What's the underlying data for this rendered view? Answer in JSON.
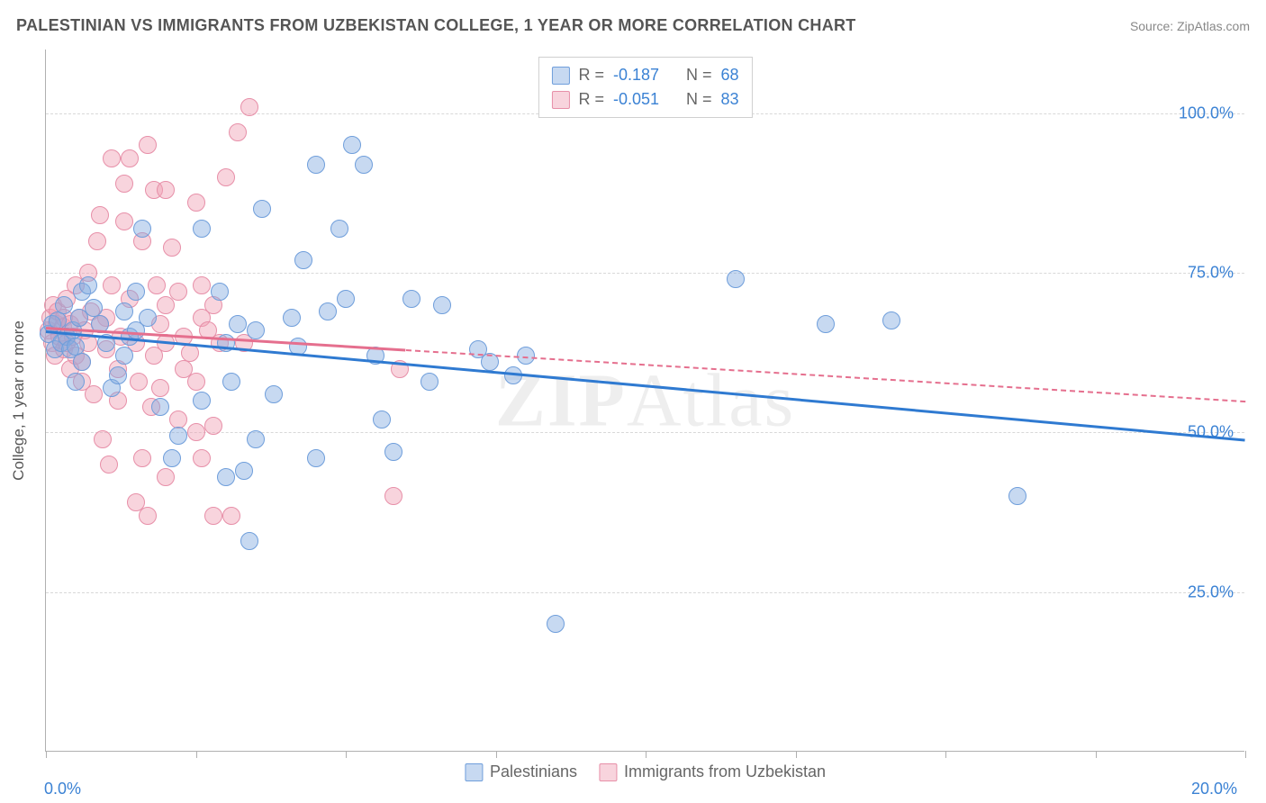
{
  "title": "PALESTINIAN VS IMMIGRANTS FROM UZBEKISTAN COLLEGE, 1 YEAR OR MORE CORRELATION CHART",
  "source": "Source: ZipAtlas.com",
  "watermark_prefix": "ZIP",
  "watermark_suffix": "Atlas",
  "chart": {
    "type": "scatter",
    "y_axis_title": "College, 1 year or more",
    "x_min_label": "0.0%",
    "x_max_label": "20.0%",
    "xlim": [
      0,
      20
    ],
    "ylim": [
      0,
      110
    ],
    "gridlines_y": [
      25,
      50,
      75,
      100
    ],
    "y_tick_labels": [
      "25.0%",
      "50.0%",
      "75.0%",
      "100.0%"
    ],
    "x_ticks": [
      0,
      2.5,
      5,
      7.5,
      10,
      12.5,
      15,
      17.5,
      20
    ],
    "background_color": "#ffffff",
    "grid_color": "#d8d8d8",
    "axis_color": "#b0b0b0",
    "label_color": "#3b82d4",
    "title_color": "#555555",
    "title_fontsize": 18,
    "tick_fontsize": 18,
    "marker_radius": 10,
    "series": [
      {
        "name": "Palestinians",
        "fill": "rgba(130,170,225,0.45)",
        "stroke": "#6f9edb",
        "trend_color": "#2f7ad1",
        "solid_end_x": 20,
        "trend": {
          "x1": 0,
          "y1": 66,
          "x2": 20,
          "y2": 49
        },
        "R": "-0.187",
        "N": "68",
        "points": [
          [
            0.05,
            65.5
          ],
          [
            0.1,
            67
          ],
          [
            0.15,
            63
          ],
          [
            0.2,
            67.5
          ],
          [
            0.25,
            64
          ],
          [
            0.3,
            70
          ],
          [
            0.35,
            65
          ],
          [
            0.4,
            63
          ],
          [
            0.45,
            66
          ],
          [
            0.5,
            63.5
          ],
          [
            0.55,
            68
          ],
          [
            0.5,
            58
          ],
          [
            0.6,
            61
          ],
          [
            0.6,
            72
          ],
          [
            0.7,
            73
          ],
          [
            0.8,
            69.5
          ],
          [
            0.9,
            67
          ],
          [
            1.0,
            64
          ],
          [
            1.1,
            57
          ],
          [
            1.2,
            59
          ],
          [
            1.3,
            62
          ],
          [
            1.4,
            65
          ],
          [
            1.5,
            66
          ],
          [
            1.3,
            69
          ],
          [
            1.5,
            72
          ],
          [
            1.7,
            68
          ],
          [
            1.6,
            82
          ],
          [
            1.9,
            54
          ],
          [
            2.1,
            46
          ],
          [
            2.2,
            49.5
          ],
          [
            2.6,
            55
          ],
          [
            2.6,
            82
          ],
          [
            2.9,
            72
          ],
          [
            3.0,
            64
          ],
          [
            3.1,
            58
          ],
          [
            3.3,
            44
          ],
          [
            3.4,
            33
          ],
          [
            3.0,
            43
          ],
          [
            3.2,
            67
          ],
          [
            3.6,
            85
          ],
          [
            3.5,
            49
          ],
          [
            3.5,
            66
          ],
          [
            3.8,
            56
          ],
          [
            4.1,
            68
          ],
          [
            4.2,
            63.5
          ],
          [
            4.3,
            77
          ],
          [
            4.5,
            46
          ],
          [
            4.7,
            69
          ],
          [
            4.9,
            82
          ],
          [
            5.1,
            95
          ],
          [
            5.3,
            92
          ],
          [
            5.0,
            71
          ],
          [
            5.5,
            62
          ],
          [
            5.6,
            52
          ],
          [
            5.8,
            47
          ],
          [
            4.5,
            92
          ],
          [
            6.1,
            71
          ],
          [
            6.4,
            58
          ],
          [
            6.6,
            70
          ],
          [
            7.2,
            63
          ],
          [
            7.4,
            61
          ],
          [
            7.8,
            59
          ],
          [
            8.0,
            62
          ],
          [
            8.5,
            20
          ],
          [
            11.5,
            74
          ],
          [
            13.0,
            67
          ],
          [
            14.1,
            67.5
          ],
          [
            16.2,
            40
          ]
        ]
      },
      {
        "name": "Immigrants from Uzbekistan",
        "fill": "rgba(240,160,180,0.45)",
        "stroke": "#e78fa8",
        "trend_color": "#e56f8e",
        "solid_end_x": 6,
        "trend": {
          "x1": 0,
          "y1": 66.5,
          "x2": 20,
          "y2": 55
        },
        "R": "-0.051",
        "N": "83",
        "points": [
          [
            0.05,
            66
          ],
          [
            0.08,
            68
          ],
          [
            0.1,
            64
          ],
          [
            0.12,
            70
          ],
          [
            0.15,
            62
          ],
          [
            0.18,
            67
          ],
          [
            0.2,
            69
          ],
          [
            0.22,
            65
          ],
          [
            0.28,
            66.5
          ],
          [
            0.3,
            63
          ],
          [
            0.3,
            68
          ],
          [
            0.35,
            71
          ],
          [
            0.35,
            64
          ],
          [
            0.4,
            67
          ],
          [
            0.4,
            60
          ],
          [
            0.45,
            65
          ],
          [
            0.5,
            73
          ],
          [
            0.5,
            62
          ],
          [
            0.55,
            68
          ],
          [
            0.6,
            61
          ],
          [
            0.6,
            58
          ],
          [
            0.65,
            66
          ],
          [
            0.7,
            64
          ],
          [
            0.7,
            75
          ],
          [
            0.75,
            69
          ],
          [
            0.8,
            56
          ],
          [
            0.85,
            80
          ],
          [
            0.9,
            84
          ],
          [
            0.95,
            49
          ],
          [
            1.0,
            63
          ],
          [
            1.0,
            68
          ],
          [
            1.05,
            45
          ],
          [
            1.1,
            93
          ],
          [
            1.1,
            73
          ],
          [
            1.2,
            60
          ],
          [
            1.2,
            55
          ],
          [
            1.3,
            83
          ],
          [
            1.3,
            89
          ],
          [
            1.4,
            93
          ],
          [
            1.4,
            71
          ],
          [
            1.5,
            64
          ],
          [
            1.5,
            39
          ],
          [
            1.55,
            58
          ],
          [
            1.6,
            80
          ],
          [
            1.6,
            46
          ],
          [
            1.7,
            95
          ],
          [
            1.7,
            37
          ],
          [
            1.75,
            54
          ],
          [
            1.8,
            88
          ],
          [
            1.8,
            62
          ],
          [
            1.85,
            73
          ],
          [
            1.9,
            67
          ],
          [
            1.9,
            57
          ],
          [
            2.0,
            64
          ],
          [
            2.0,
            43
          ],
          [
            2.1,
            79
          ],
          [
            2.2,
            72
          ],
          [
            2.2,
            52
          ],
          [
            2.3,
            65
          ],
          [
            2.3,
            60
          ],
          [
            2.5,
            86
          ],
          [
            2.5,
            58
          ],
          [
            2.5,
            50
          ],
          [
            2.6,
            73
          ],
          [
            2.6,
            68
          ],
          [
            2.6,
            46
          ],
          [
            2.7,
            66
          ],
          [
            2.8,
            51
          ],
          [
            2.8,
            70
          ],
          [
            2.8,
            37
          ],
          [
            2.9,
            64
          ],
          [
            3.0,
            90
          ],
          [
            3.1,
            37
          ],
          [
            3.2,
            97
          ],
          [
            3.3,
            64
          ],
          [
            2.0,
            88
          ],
          [
            3.4,
            101
          ],
          [
            2.4,
            62.5
          ],
          [
            1.25,
            65
          ],
          [
            0.9,
            67
          ],
          [
            5.8,
            40
          ],
          [
            5.9,
            60
          ],
          [
            2.0,
            70
          ]
        ]
      }
    ],
    "stats_labels": {
      "R": "R  =",
      "N": "N  ="
    },
    "legend_labels": [
      "Palestinians",
      "Immigrants from Uzbekistan"
    ]
  }
}
